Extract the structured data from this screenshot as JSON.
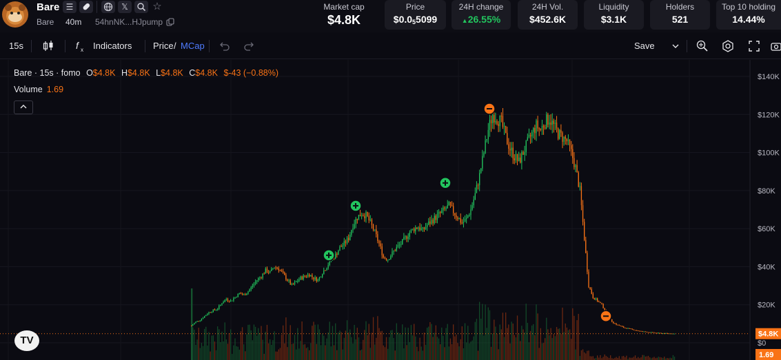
{
  "token": {
    "name": "Bare",
    "symbol_sub": "Bare",
    "age": "40m",
    "address": "54hnNK...HJpump"
  },
  "icons": [
    "menu-lines-icon",
    "pill-icon",
    "globe-icon",
    "x-logo-icon",
    "search-icon",
    "star-icon",
    "copy-icon"
  ],
  "stats": {
    "market_cap": {
      "label": "Market cap",
      "value": "$4.8K"
    },
    "price": {
      "label": "Price",
      "prefix": "$0.0",
      "zeros": "5",
      "suffix": "5099"
    },
    "change_24h": {
      "label": "24H change",
      "value": "26.55%"
    },
    "vol_24h": {
      "label": "24H Vol.",
      "value": "$452.6K"
    },
    "liquidity": {
      "label": "Liquidity",
      "value": "$3.1K"
    },
    "holders": {
      "label": "Holders",
      "value": "521"
    },
    "top10": {
      "label": "Top 10 holding",
      "value": "14.44%"
    }
  },
  "toolbar": {
    "interval": "15s",
    "indicators": "Indicators",
    "price_label": "Price",
    "slash": "/",
    "mcap_label": "MCap",
    "save": "Save"
  },
  "legend": {
    "series": "Bare · 15s · fomo",
    "o_label": "O",
    "o_val": "$4.8K",
    "h_label": "H",
    "h_val": "$4.8K",
    "l_label": "L",
    "l_val": "$4.8K",
    "c_label": "C",
    "c_val": "$4.8K",
    "chg": "$-43 (−0.88%)"
  },
  "volume": {
    "label": "Volume",
    "value": "1.69"
  },
  "colors": {
    "up": "#22c55e",
    "down": "#f97316",
    "accent": "#4f7cff",
    "bg": "#0b0b12"
  },
  "chart_data": {
    "type": "candlestick",
    "ylabel": "",
    "y_ticks": [
      "$140K",
      "$120K",
      "$100K",
      "$80K",
      "$60K",
      "$40K",
      "$20K",
      "$0"
    ],
    "ylim": [
      0,
      140000
    ],
    "last_price_label": "$4.8K",
    "last_volume_label": "1.69",
    "close_path": [
      9,
      11,
      12,
      14,
      16,
      17,
      18,
      21,
      23,
      22,
      24,
      26,
      25,
      27,
      30,
      33,
      35,
      38,
      37,
      40,
      39,
      36,
      33,
      30,
      32,
      34,
      35,
      36,
      34,
      33,
      37,
      40,
      44,
      46,
      50,
      52,
      55,
      62,
      66,
      68,
      67,
      63,
      58,
      52,
      45,
      44,
      47,
      50,
      52,
      55,
      58,
      60,
      61,
      59,
      62,
      64,
      66,
      68,
      70,
      72,
      69,
      66,
      63,
      65,
      70,
      78,
      88,
      100,
      112,
      120,
      118,
      116,
      108,
      102,
      98,
      95,
      100,
      105,
      110,
      114,
      112,
      116,
      118,
      114,
      110,
      108,
      106,
      100,
      92,
      80,
      55,
      30,
      24,
      22,
      20,
      16,
      12,
      10,
      9,
      8,
      7.5,
      7,
      6.5,
      6,
      5.8,
      5.5,
      5.3,
      5.1,
      5,
      4.9,
      4.9,
      4.8
    ],
    "markers": [
      {
        "type": "buy",
        "value": 46000
      },
      {
        "type": "buy",
        "value": 72000
      },
      {
        "type": "buy",
        "value": 84000
      },
      {
        "type": "sell",
        "value": 123000
      },
      {
        "type": "sell",
        "value": 14000
      }
    ],
    "grid": true
  }
}
